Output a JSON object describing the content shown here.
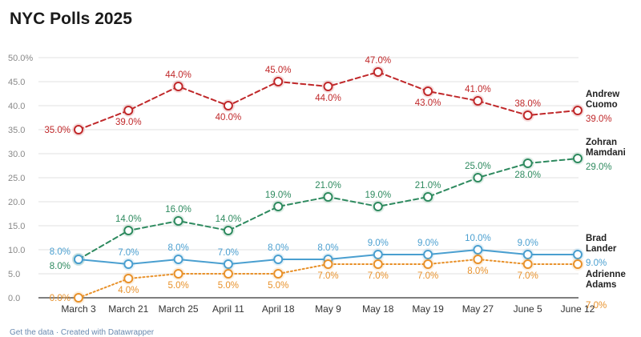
{
  "chart_data": {
    "type": "line",
    "title": "NYC Polls 2025",
    "xlabel": "",
    "ylabel": "",
    "categories": [
      "March 3",
      "March 21",
      "March 25",
      "April 11",
      "April 18",
      "May 9",
      "May 18",
      "May 19",
      "May 27",
      "June 5",
      "June 12"
    ],
    "ylim": [
      0,
      50
    ],
    "yticks": [
      "0.0",
      "5.0",
      "10.0",
      "15.0",
      "20.0",
      "25.0",
      "30.0",
      "35.0",
      "40.0",
      "45.0",
      "50.0%"
    ],
    "grid": true,
    "series": [
      {
        "name": "Andrew Cuomo",
        "name_lines": [
          "Andrew",
          "Cuomo"
        ],
        "color": "#c0282a",
        "style": "dashed",
        "values": [
          35,
          39,
          44,
          40,
          45,
          44,
          47,
          43,
          41,
          38,
          39
        ],
        "labels": [
          "35.0%",
          "39.0%",
          "44.0%",
          "40.0%",
          "45.0%",
          "44.0%",
          "47.0%",
          "43.0%",
          "41.0%",
          "38.0%",
          "39.0%"
        ],
        "label_pos": [
          "left",
          "below",
          "above",
          "below",
          "above",
          "below",
          "above",
          "below",
          "above",
          "above",
          "end"
        ]
      },
      {
        "name": "Zohran Mamdani",
        "name_lines": [
          "Zohran",
          "Mamdani"
        ],
        "color": "#2e8a5f",
        "style": "dashed",
        "values": [
          8,
          14,
          16,
          14,
          19,
          21,
          19,
          21,
          25,
          28,
          29
        ],
        "labels": [
          "8.0%",
          "14.0%",
          "16.0%",
          "14.0%",
          "19.0%",
          "21.0%",
          "19.0%",
          "21.0%",
          "25.0%",
          "28.0%",
          "29.0%"
        ],
        "label_pos": [
          "left-below",
          "above",
          "above",
          "above",
          "above",
          "above",
          "above",
          "above",
          "above",
          "below",
          "end"
        ]
      },
      {
        "name": "Brad Lander",
        "name_lines": [
          "Brad",
          "Lander"
        ],
        "color": "#4a9fd0",
        "style": "solid",
        "values": [
          8,
          7,
          8,
          7,
          8,
          8,
          9,
          9,
          10,
          9,
          9
        ],
        "labels": [
          "8.0%",
          "7.0%",
          "8.0%",
          "7.0%",
          "8.0%",
          "8.0%",
          "9.0%",
          "9.0%",
          "10.0%",
          "9.0%",
          "9.0%"
        ],
        "label_pos": [
          "left-above",
          "above",
          "above",
          "above",
          "above",
          "above",
          "above",
          "above",
          "above",
          "above",
          "end"
        ]
      },
      {
        "name": "Adrienne Adams",
        "name_lines": [
          "Adrienne",
          "Adams"
        ],
        "color": "#e8912a",
        "style": "dotted",
        "values": [
          0,
          4,
          5,
          5,
          5,
          7,
          7,
          7,
          8,
          7,
          7
        ],
        "labels": [
          "0.0%",
          "4.0%",
          "5.0%",
          "5.0%",
          "5.0%",
          "7.0%",
          "7.0%",
          "7.0%",
          "8.0%",
          "7.0%",
          "7.0%"
        ],
        "label_pos": [
          "left",
          "below",
          "below",
          "below",
          "below",
          "below",
          "below",
          "below",
          "below",
          "below",
          "end"
        ]
      }
    ]
  },
  "footer": "Get the data · Created with Datawrapper"
}
